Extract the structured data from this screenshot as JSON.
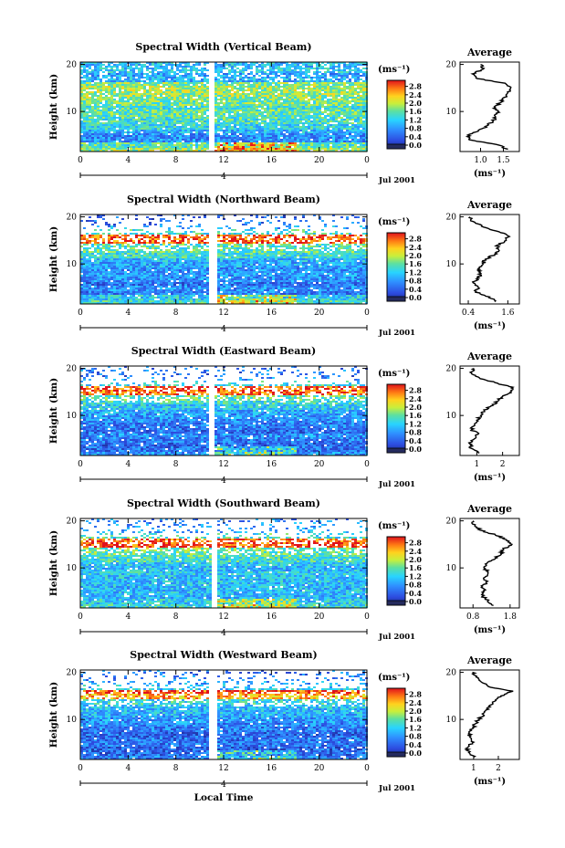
{
  "chart_data": [
    {
      "type": "heatmap",
      "title": "Spectral Width (Vertical Beam)",
      "ylabel": "Height (km)",
      "x_ticks": [
        "0",
        "4",
        "8",
        "12",
        "16",
        "20",
        "0"
      ],
      "y_ticks": [
        "20",
        "10"
      ],
      "date_label": "Jul 2001",
      "day_label": "4",
      "colorbar": {
        "unit_label": "(ms⁻¹)",
        "ticks": [
          "2.8",
          "2.4",
          "2.0",
          "1.6",
          "1.2",
          "0.8",
          "0.4",
          "0.0"
        ],
        "range": [
          0,
          3.0
        ]
      },
      "xlim": [
        0,
        24
      ],
      "ylim": [
        1.5,
        20.5
      ],
      "data_gap_hours": [
        10.6,
        11.2
      ],
      "average_profile": {
        "title": "Average",
        "xlabel": "(ms⁻¹)",
        "x_ticks": [
          "1.0",
          "1.5"
        ],
        "xlim": [
          0.55,
          1.85
        ],
        "y_ticks": [
          "20",
          "10"
        ],
        "height": [
          2,
          3,
          4,
          5,
          6,
          7,
          8,
          9,
          10,
          11,
          12,
          13,
          14,
          15,
          16,
          17,
          18,
          19,
          20
        ],
        "width": [
          1.6,
          1.35,
          0.75,
          0.72,
          0.95,
          1.15,
          1.28,
          1.32,
          1.38,
          1.3,
          1.46,
          1.52,
          1.6,
          1.66,
          1.54,
          0.92,
          0.82,
          1.06,
          1.0
        ]
      }
    },
    {
      "type": "heatmap",
      "title": "Spectral Width (Northward Beam)",
      "ylabel": "Height (km)",
      "x_ticks": [
        "0",
        "4",
        "8",
        "12",
        "16",
        "20",
        "0"
      ],
      "y_ticks": [
        "20",
        "10"
      ],
      "date_label": "Jul 2001",
      "day_label": "4",
      "colorbar": {
        "unit_label": "(ms⁻¹)",
        "ticks": [
          "2.8",
          "2.4",
          "2.0",
          "1.6",
          "1.2",
          "0.8",
          "0.4",
          "0.0"
        ],
        "range": [
          0,
          3.0
        ]
      },
      "xlim": [
        0,
        24
      ],
      "ylim": [
        1.5,
        20.5
      ],
      "data_gap_hours": [
        10.7,
        11.3
      ],
      "average_profile": {
        "title": "Average",
        "xlabel": "(ms⁻¹)",
        "x_ticks": [
          "0.4",
          "1.6"
        ],
        "xlim": [
          0.15,
          1.95
        ],
        "y_ticks": [
          "20",
          "10"
        ],
        "height": [
          2,
          3,
          4,
          5,
          6,
          7,
          8,
          9,
          10,
          11,
          12,
          13,
          14,
          15,
          16,
          17,
          18,
          19,
          20
        ],
        "width": [
          1.2,
          1.05,
          0.62,
          0.7,
          0.55,
          0.72,
          0.78,
          0.7,
          0.85,
          0.92,
          1.2,
          1.32,
          1.28,
          1.55,
          1.6,
          1.25,
          0.8,
          0.55,
          0.45
        ]
      }
    },
    {
      "type": "heatmap",
      "title": "Spectral Width (Eastward Beam)",
      "ylabel": "Height (km)",
      "x_ticks": [
        "0",
        "4",
        "8",
        "12",
        "16",
        "20",
        "0"
      ],
      "y_ticks": [
        "20",
        "10"
      ],
      "date_label": "Jul 2001",
      "day_label": "4",
      "colorbar": {
        "unit_label": "(ms⁻¹)",
        "ticks": [
          "2.8",
          "2.4",
          "2.0",
          "1.6",
          "1.2",
          "0.8",
          "0.4",
          "0.0"
        ],
        "range": [
          0,
          3.0
        ]
      },
      "xlim": [
        0,
        24
      ],
      "ylim": [
        1.5,
        20.5
      ],
      "data_gap_hours": [
        10.7,
        11.2
      ],
      "average_profile": {
        "title": "Average",
        "xlabel": "(ms⁻¹)",
        "x_ticks": [
          "1",
          "2"
        ],
        "xlim": [
          0.35,
          2.65
        ],
        "y_ticks": [
          "20",
          "10"
        ],
        "height": [
          2,
          3,
          4,
          5,
          6,
          7,
          8,
          9,
          10,
          11,
          12,
          13,
          14,
          15,
          16,
          17,
          18,
          19,
          20
        ],
        "width": [
          1.1,
          0.8,
          0.72,
          0.9,
          1.05,
          0.8,
          0.92,
          1.0,
          1.15,
          1.3,
          1.55,
          1.8,
          2.0,
          2.3,
          2.4,
          1.7,
          1.1,
          0.8,
          0.9
        ]
      }
    },
    {
      "type": "heatmap",
      "title": "Spectral Width (Southward Beam)",
      "ylabel": "Height (km)",
      "x_ticks": [
        "0",
        "4",
        "8",
        "12",
        "16",
        "20",
        "0"
      ],
      "y_ticks": [
        "20",
        "10"
      ],
      "date_label": "Jul 2001",
      "day_label": "4",
      "colorbar": {
        "unit_label": "(ms⁻¹)",
        "ticks": [
          "2.8",
          "2.4",
          "2.0",
          "1.6",
          "1.2",
          "0.8",
          "0.4",
          "0.0"
        ],
        "range": [
          0,
          3.0
        ]
      },
      "xlim": [
        0,
        24
      ],
      "ylim": [
        1.5,
        20.5
      ],
      "data_gap_hours": [
        10.8,
        11.3
      ],
      "average_profile": {
        "title": "Average",
        "xlabel": "(ms⁻¹)",
        "x_ticks": [
          "0.8",
          "1.8"
        ],
        "xlim": [
          0.45,
          2.05
        ],
        "y_ticks": [
          "20",
          "10"
        ],
        "height": [
          2,
          3,
          4,
          5,
          6,
          7,
          8,
          9,
          10,
          11,
          12,
          13,
          14,
          15,
          16,
          17,
          18,
          19,
          20
        ],
        "width": [
          1.35,
          1.2,
          1.05,
          1.1,
          1.05,
          1.15,
          1.12,
          1.2,
          1.1,
          1.18,
          1.4,
          1.55,
          1.62,
          1.85,
          1.7,
          1.4,
          1.0,
          0.85,
          0.8
        ]
      }
    },
    {
      "type": "heatmap",
      "title": "Spectral Width (Westward Beam)",
      "ylabel": "Height (km)",
      "xlabel": "Local Time",
      "x_ticks": [
        "0",
        "4",
        "8",
        "12",
        "16",
        "20",
        "0"
      ],
      "y_ticks": [
        "20",
        "10"
      ],
      "date_label": "Jul 2001",
      "day_label": "4",
      "colorbar": {
        "unit_label": "(ms⁻¹)",
        "ticks": [
          "2.8",
          "2.4",
          "2.0",
          "1.6",
          "1.2",
          "0.8",
          "0.4",
          "0.0"
        ],
        "range": [
          0,
          3.0
        ]
      },
      "xlim": [
        0,
        24
      ],
      "ylim": [
        1.5,
        20.5
      ],
      "data_gap_hours": [
        10.7,
        11.3
      ],
      "average_profile": {
        "title": "Average",
        "xlabel": "(ms⁻¹)",
        "x_ticks": [
          "1",
          "2"
        ],
        "xlim": [
          0.45,
          2.85
        ],
        "y_ticks": [
          "20",
          "10"
        ],
        "height": [
          2,
          3,
          4,
          5,
          6,
          7,
          8,
          9,
          10,
          11,
          12,
          13,
          14,
          15,
          16,
          17,
          18,
          19,
          20
        ],
        "width": [
          1.0,
          0.8,
          0.75,
          0.95,
          0.9,
          0.8,
          0.95,
          1.05,
          1.2,
          1.4,
          1.5,
          1.65,
          1.9,
          2.1,
          2.6,
          1.6,
          1.3,
          1.1,
          0.95
        ]
      }
    }
  ]
}
